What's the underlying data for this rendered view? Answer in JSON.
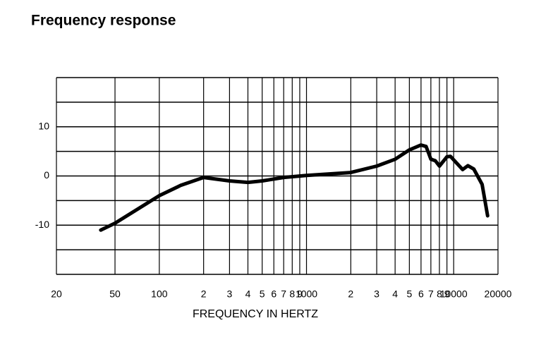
{
  "chart_data": {
    "type": "line",
    "title": "Frequency response",
    "xlabel": "FREQUENCY IN HERTZ",
    "xscale": "log",
    "xlim": [
      20,
      20000
    ],
    "ylim": [
      -20,
      20
    ],
    "xticks": [
      20,
      50,
      100,
      {
        "value": 200,
        "label": "2"
      },
      {
        "value": 300,
        "label": "3"
      },
      {
        "value": 400,
        "label": "4"
      },
      {
        "value": 500,
        "label": "5"
      },
      {
        "value": 600,
        "label": "6"
      },
      {
        "value": 700,
        "label": "7"
      },
      {
        "value": 800,
        "label": "8"
      },
      {
        "value": 900,
        "label": "9"
      },
      1000,
      {
        "value": 2000,
        "label": "2"
      },
      {
        "value": 3000,
        "label": "3"
      },
      {
        "value": 4000,
        "label": "4"
      },
      {
        "value": 5000,
        "label": "5"
      },
      {
        "value": 6000,
        "label": "6"
      },
      {
        "value": 7000,
        "label": "7"
      },
      {
        "value": 8000,
        "label": "8"
      },
      {
        "value": 9000,
        "label": "9"
      },
      10000,
      20000
    ],
    "yticks": [
      10,
      0,
      -10
    ],
    "ygrid": [
      -20,
      -15,
      -10,
      -5,
      0,
      5,
      10,
      15,
      20
    ],
    "color": "#000000",
    "x": [
      40,
      50,
      100,
      140,
      200,
      300,
      400,
      500,
      700,
      1000,
      1400,
      2000,
      3000,
      4000,
      5000,
      6000,
      6500,
      7000,
      7500,
      8000,
      9000,
      9500,
      11500,
      12500,
      13700,
      15600,
      17000
    ],
    "values": [
      -11,
      -9.6,
      -4,
      -1.9,
      -0.3,
      -1,
      -1.3,
      -1,
      -0.3,
      0.1,
      0.4,
      0.7,
      2,
      3.4,
      5.3,
      6.3,
      6,
      3.4,
      3.1,
      2,
      3.9,
      4,
      1.3,
      2.1,
      1.4,
      -1.7,
      -8.1
    ]
  }
}
